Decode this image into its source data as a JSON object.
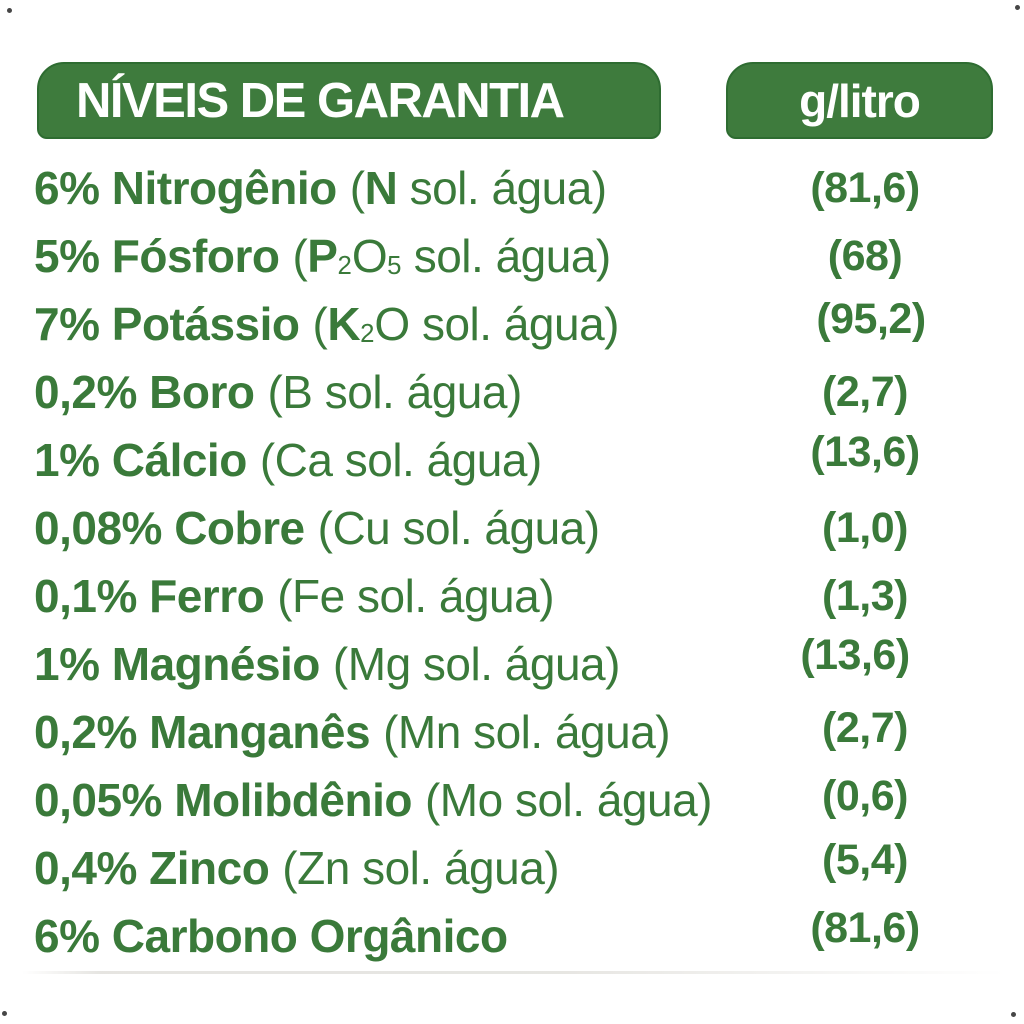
{
  "header": {
    "title": "NÍVEIS DE GARANTIA",
    "unit": "g/litro"
  },
  "rows": [
    {
      "name": "6% Nitrogênio",
      "formula": [
        {
          "style": "bold",
          "text": "N"
        }
      ],
      "suffix": "sol. água",
      "value": "(81,6)"
    },
    {
      "name": "5% Fósforo",
      "formula": [
        {
          "style": "bold",
          "text": "P"
        },
        {
          "style": "sub",
          "text": "2"
        },
        {
          "style": "normal",
          "text": "O"
        },
        {
          "style": "sub",
          "text": "5"
        }
      ],
      "suffix": "sol. água",
      "value": "(68)"
    },
    {
      "name": "7% Potássio",
      "formula": [
        {
          "style": "bold",
          "text": "K"
        },
        {
          "style": "sub",
          "text": "2"
        },
        {
          "style": "normal",
          "text": "O"
        }
      ],
      "suffix": "sol. água",
      "value": "(95,2)"
    },
    {
      "name": "0,2% Boro",
      "formula": [
        {
          "style": "normal",
          "text": "B"
        }
      ],
      "suffix": "sol. água",
      "value": "(2,7)"
    },
    {
      "name": "1% Cálcio",
      "formula": [
        {
          "style": "normal",
          "text": "Ca"
        }
      ],
      "suffix": "sol. água",
      "value": "(13,6)"
    },
    {
      "name": "0,08% Cobre",
      "formula": [
        {
          "style": "normal",
          "text": "Cu"
        }
      ],
      "suffix": "sol. água",
      "value": "(1,0)"
    },
    {
      "name": "0,1% Ferro",
      "formula": [
        {
          "style": "normal",
          "text": "Fe"
        }
      ],
      "suffix": "sol. água",
      "value": "(1,3)"
    },
    {
      "name": "1% Magnésio",
      "formula": [
        {
          "style": "normal",
          "text": "Mg"
        }
      ],
      "suffix": "sol. água",
      "value": "(13,6)"
    },
    {
      "name": "0,2% Manganês",
      "formula": [
        {
          "style": "normal",
          "text": "Mn"
        }
      ],
      "suffix": "sol. água",
      "value": "(2,7)"
    },
    {
      "name": "0,05% Molibdênio",
      "formula": [
        {
          "style": "normal",
          "text": "Mo"
        }
      ],
      "suffix": "sol. água",
      "value": "(0,6)"
    },
    {
      "name": "0,4% Zinco",
      "formula": [
        {
          "style": "normal",
          "text": "Zn"
        }
      ],
      "suffix": "sol. água",
      "value": "(5,4)"
    },
    {
      "name": "6% Carbono Orgânico",
      "formula": null,
      "suffix": null,
      "value": "(81,6)"
    }
  ],
  "colors": {
    "text_green": "#3a7a3a",
    "box_green": "#3e7b3d",
    "box_border": "#2e6c31",
    "header_text": "#ffffff",
    "background": "#ffffff"
  }
}
